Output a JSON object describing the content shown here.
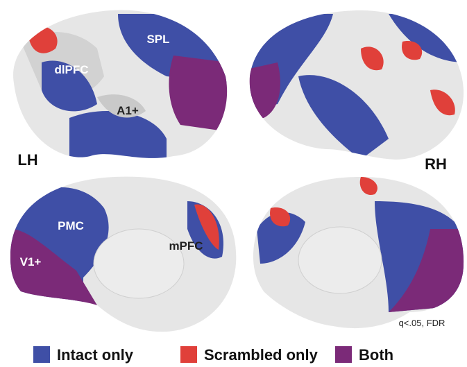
{
  "hemispheres": {
    "left": "LH",
    "right": "RH"
  },
  "regions": {
    "spl": "SPL",
    "dlpfc": "dlPFC",
    "a1": "A1+",
    "pmc": "PMC",
    "mpfc": "mPFC",
    "v1": "V1+"
  },
  "note": "q<.05, FDR",
  "legend": [
    {
      "label": "Intact only",
      "color": "#3f4fa6"
    },
    {
      "label": "Scrambled only",
      "color": "#e0403a"
    },
    {
      "label": "Both",
      "color": "#7b2a78"
    }
  ]
}
